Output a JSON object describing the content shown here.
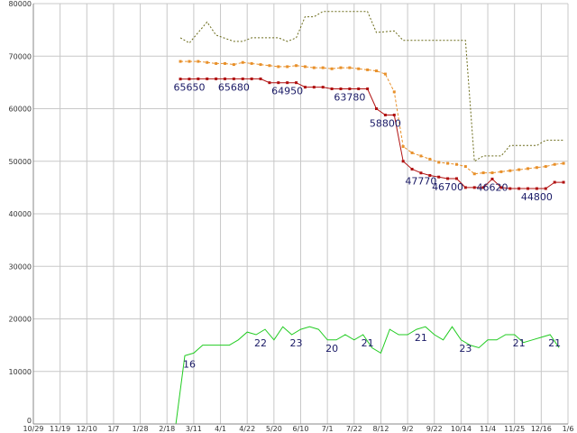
{
  "chart_data": {
    "type": "line",
    "grid": true,
    "ylim": [
      0,
      80000
    ],
    "y_ticks": [
      0,
      10000,
      20000,
      30000,
      40000,
      50000,
      60000,
      70000,
      80000
    ],
    "x_labels": [
      "10/29",
      "11/19",
      "12/10",
      "1/7",
      "1/28",
      "2/18",
      "3/11",
      "4/1",
      "4/22",
      "5/20",
      "6/10",
      "7/1",
      "7/22",
      "8/12",
      "9/2",
      "9/22",
      "10/14",
      "11/4",
      "11/25",
      "12/16",
      "1/6"
    ],
    "x_range": [
      0,
      60
    ],
    "series": [
      {
        "key": "high",
        "color": "#6b6b1a",
        "dash": "2,2",
        "markers": false,
        "points": [
          [
            16.5,
            73500
          ],
          [
            17.5,
            72500
          ],
          [
            19.5,
            76500
          ],
          [
            20.5,
            74000
          ],
          [
            22.5,
            72800
          ],
          [
            23.5,
            72800
          ],
          [
            24.5,
            73500
          ],
          [
            27.5,
            73500
          ],
          [
            28.5,
            72800
          ],
          [
            29.5,
            73500
          ],
          [
            30.5,
            77500
          ],
          [
            31.5,
            77500
          ],
          [
            32.5,
            78500
          ],
          [
            37.5,
            78500
          ],
          [
            38.5,
            74500
          ],
          [
            40.5,
            74800
          ],
          [
            41.5,
            73000
          ],
          [
            48.5,
            73000
          ],
          [
            49.5,
            50000
          ],
          [
            50.5,
            51000
          ],
          [
            52.5,
            51000
          ],
          [
            53.5,
            53000
          ],
          [
            56.5,
            53000
          ],
          [
            57.5,
            54000
          ],
          [
            59.5,
            54000
          ]
        ]
      },
      {
        "key": "avg",
        "color": "#e8902a",
        "dash": "3,2",
        "markers": true,
        "points": [
          [
            16.5,
            69000
          ],
          [
            17.5,
            69000
          ],
          [
            18.5,
            69000
          ],
          [
            19.5,
            68800
          ],
          [
            20.5,
            68600
          ],
          [
            21.5,
            68600
          ],
          [
            22.5,
            68400
          ],
          [
            23.5,
            68800
          ],
          [
            24.5,
            68600
          ],
          [
            25.5,
            68400
          ],
          [
            26.5,
            68200
          ],
          [
            27.5,
            68000
          ],
          [
            28.5,
            68000
          ],
          [
            29.5,
            68200
          ],
          [
            30.5,
            68000
          ],
          [
            31.5,
            67800
          ],
          [
            32.5,
            67800
          ],
          [
            33.5,
            67600
          ],
          [
            34.5,
            67800
          ],
          [
            35.5,
            67800
          ],
          [
            36.5,
            67600
          ],
          [
            37.5,
            67400
          ],
          [
            38.5,
            67200
          ],
          [
            39.5,
            66600
          ],
          [
            40.5,
            63200
          ],
          [
            41.5,
            52800
          ],
          [
            42.5,
            51600
          ],
          [
            43.5,
            51000
          ],
          [
            44.5,
            50400
          ],
          [
            45.5,
            49800
          ],
          [
            46.5,
            49600
          ],
          [
            47.5,
            49400
          ],
          [
            48.5,
            49000
          ],
          [
            49.5,
            47600
          ],
          [
            50.5,
            47800
          ],
          [
            51.5,
            47800
          ],
          [
            52.5,
            48000
          ],
          [
            53.5,
            48200
          ],
          [
            54.5,
            48400
          ],
          [
            55.5,
            48600
          ],
          [
            56.5,
            48800
          ],
          [
            57.5,
            49000
          ],
          [
            58.5,
            49400
          ],
          [
            59.5,
            49600
          ]
        ]
      },
      {
        "key": "low",
        "color": "#b01010",
        "dash": "",
        "markers": true,
        "points": [
          [
            16.5,
            65650
          ],
          [
            17.5,
            65650
          ],
          [
            18.5,
            65680
          ],
          [
            19.5,
            65680
          ],
          [
            20.5,
            65680
          ],
          [
            21.5,
            65680
          ],
          [
            22.5,
            65680
          ],
          [
            23.5,
            65680
          ],
          [
            24.5,
            65680
          ],
          [
            25.5,
            65680
          ],
          [
            26.5,
            64950
          ],
          [
            27.5,
            64950
          ],
          [
            28.5,
            64950
          ],
          [
            29.5,
            64950
          ],
          [
            30.5,
            64100
          ],
          [
            31.5,
            64100
          ],
          [
            32.5,
            64100
          ],
          [
            33.5,
            63780
          ],
          [
            34.5,
            63780
          ],
          [
            35.5,
            63780
          ],
          [
            36.5,
            63780
          ],
          [
            37.5,
            63780
          ],
          [
            38.5,
            60000
          ],
          [
            39.5,
            58800
          ],
          [
            40.5,
            58800
          ],
          [
            41.5,
            50000
          ],
          [
            42.5,
            48500
          ],
          [
            43.5,
            47770
          ],
          [
            44.5,
            47300
          ],
          [
            45.5,
            47000
          ],
          [
            46.5,
            46700
          ],
          [
            47.5,
            46700
          ],
          [
            48.5,
            45000
          ],
          [
            49.5,
            45000
          ],
          [
            50.5,
            45000
          ],
          [
            51.5,
            46620
          ],
          [
            52.5,
            45000
          ],
          [
            53.5,
            44800
          ],
          [
            54.5,
            44800
          ],
          [
            55.5,
            44800
          ],
          [
            56.5,
            44800
          ],
          [
            57.5,
            44800
          ],
          [
            58.5,
            46000
          ],
          [
            59.5,
            46000
          ]
        ]
      },
      {
        "key": "count",
        "color": "#22cc22",
        "dash": "",
        "markers": false,
        "points": [
          [
            0,
            0
          ],
          [
            16,
            0
          ],
          [
            17,
            13000
          ],
          [
            18,
            13500
          ],
          [
            19,
            15000
          ],
          [
            22,
            15000
          ],
          [
            23,
            16000
          ],
          [
            24,
            17500
          ],
          [
            25,
            17000
          ],
          [
            26,
            18000
          ],
          [
            27,
            16000
          ],
          [
            28,
            18500
          ],
          [
            29,
            17000
          ],
          [
            30,
            18000
          ],
          [
            31,
            18500
          ],
          [
            32,
            18000
          ],
          [
            33,
            16000
          ],
          [
            34,
            16000
          ],
          [
            35,
            17000
          ],
          [
            36,
            16000
          ],
          [
            37,
            17000
          ],
          [
            38,
            14500
          ],
          [
            39,
            13500
          ],
          [
            40,
            18000
          ],
          [
            41,
            17000
          ],
          [
            42,
            17000
          ],
          [
            43,
            18000
          ],
          [
            44,
            18500
          ],
          [
            45,
            17000
          ],
          [
            46,
            16000
          ],
          [
            47,
            18500
          ],
          [
            48,
            16000
          ],
          [
            49,
            15000
          ],
          [
            50,
            14500
          ],
          [
            51,
            16000
          ],
          [
            52,
            16000
          ],
          [
            53,
            17000
          ],
          [
            54,
            17000
          ],
          [
            55,
            15500
          ],
          [
            56,
            16000
          ],
          [
            57,
            16500
          ],
          [
            58,
            17000
          ],
          [
            59,
            14500
          ]
        ]
      }
    ],
    "annotations": [
      {
        "text": "65650",
        "x": 17.5,
        "y": 65650
      },
      {
        "text": "65680",
        "x": 22.5,
        "y": 65680
      },
      {
        "text": "64950",
        "x": 28.5,
        "y": 64950
      },
      {
        "text": "63780",
        "x": 35.5,
        "y": 63780
      },
      {
        "text": "58800",
        "x": 39.5,
        "y": 58800
      },
      {
        "text": "47770",
        "x": 43.5,
        "y": 47770
      },
      {
        "text": "46700",
        "x": 46.5,
        "y": 46700
      },
      {
        "text": "46620",
        "x": 51.5,
        "y": 46620
      },
      {
        "text": "44800",
        "x": 56.5,
        "y": 44800
      },
      {
        "text": "16",
        "x": 17.5,
        "y": 13000
      },
      {
        "text": "22",
        "x": 25.5,
        "y": 17000
      },
      {
        "text": "23",
        "x": 29.5,
        "y": 17000
      },
      {
        "text": "20",
        "x": 33.5,
        "y": 16000
      },
      {
        "text": "21",
        "x": 37.5,
        "y": 17000
      },
      {
        "text": "21",
        "x": 43.5,
        "y": 18000
      },
      {
        "text": "23",
        "x": 48.5,
        "y": 16000
      },
      {
        "text": "21",
        "x": 54.5,
        "y": 17000
      },
      {
        "text": "21",
        "x": 58.5,
        "y": 17000
      }
    ]
  }
}
